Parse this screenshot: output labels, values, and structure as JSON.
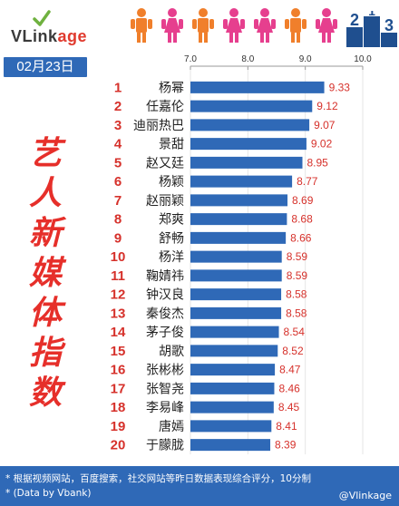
{
  "header": {
    "logo_text_main": "VLink",
    "logo_text_tail": "age",
    "people_icons": [
      "person-orange-icon",
      "person-pink-icon",
      "person-orange-icon",
      "person-pink-icon",
      "person-pink-icon",
      "person-orange-icon",
      "person-pink-icon"
    ],
    "deco_digits": [
      "2",
      "1",
      "3"
    ]
  },
  "date_label": "02月23日",
  "side_title": [
    "艺",
    "人",
    "新",
    "媒",
    "体",
    "指",
    "数"
  ],
  "colors": {
    "bar": "#2f69b7",
    "rank": "#d6312b",
    "value": "#d6312b",
    "footer_bg": "#2f69b7",
    "title": "#e62f2a",
    "person_orange": "#f07f2b",
    "person_pink": "#e63f8e"
  },
  "chart_data": {
    "type": "bar",
    "orientation": "horizontal",
    "xlim": [
      7.0,
      10.0
    ],
    "xticks": [
      "7.0",
      "8.0",
      "9.0",
      "10.0"
    ],
    "grid": true,
    "categories": [
      "杨幂",
      "任嘉伦",
      "迪丽热巴",
      "景甜",
      "赵又廷",
      "杨颖",
      "赵丽颖",
      "郑爽",
      "舒畅",
      "杨洋",
      "鞠婧祎",
      "钟汉良",
      "秦俊杰",
      "茅子俊",
      "胡歌",
      "张彬彬",
      "张智尧",
      "李易峰",
      "唐嫣",
      "于朦胧"
    ],
    "ranks": [
      "1",
      "2",
      "3",
      "4",
      "5",
      "6",
      "7",
      "8",
      "9",
      "10",
      "11",
      "12",
      "13",
      "14",
      "15",
      "16",
      "17",
      "18",
      "19",
      "20"
    ],
    "values": [
      9.33,
      9.12,
      9.07,
      9.02,
      8.95,
      8.77,
      8.69,
      8.68,
      8.66,
      8.59,
      8.59,
      8.58,
      8.58,
      8.54,
      8.52,
      8.47,
      8.46,
      8.45,
      8.41,
      8.39
    ],
    "value_labels": [
      "9.33",
      "9.12",
      "9.07",
      "9.02",
      "8.95",
      "8.77",
      "8.69",
      "8.68",
      "8.66",
      "8.59",
      "8.59",
      "8.58",
      "8.58",
      "8.54",
      "8.52",
      "8.47",
      "8.46",
      "8.45",
      "8.41",
      "8.39"
    ]
  },
  "footer": {
    "note1": "* 根据视频网站，百度搜索，社交网站等昨日数据表现综合评分，10分制",
    "note2": "* (Data by Vbank)",
    "watermark": "@Vlinkage"
  }
}
